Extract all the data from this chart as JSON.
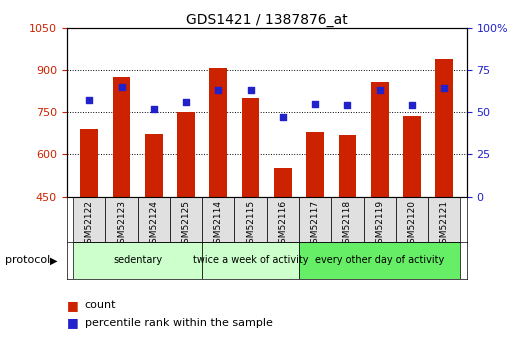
{
  "title": "GDS1421 / 1387876_at",
  "samples": [
    "GSM52122",
    "GSM52123",
    "GSM52124",
    "GSM52125",
    "GSM52114",
    "GSM52115",
    "GSM52116",
    "GSM52117",
    "GSM52118",
    "GSM52119",
    "GSM52120",
    "GSM52121"
  ],
  "counts": [
    690,
    875,
    672,
    752,
    905,
    800,
    553,
    678,
    668,
    857,
    735,
    940
  ],
  "percentiles": [
    57,
    65,
    52,
    56,
    63,
    63,
    47,
    55,
    54,
    63,
    54,
    64
  ],
  "group_defs": [
    {
      "start": 0,
      "end": 4,
      "color": "#ccffcc",
      "label": "sedentary"
    },
    {
      "start": 4,
      "end": 7,
      "color": "#ccffcc",
      "label": "twice a week of activity"
    },
    {
      "start": 7,
      "end": 12,
      "color": "#66ee66",
      "label": "every other day of activity"
    }
  ],
  "ylim_left": [
    450,
    1050
  ],
  "ylim_right": [
    0,
    100
  ],
  "yticks_left": [
    450,
    600,
    750,
    900,
    1050
  ],
  "yticks_right": [
    0,
    25,
    50,
    75,
    100
  ],
  "bar_color": "#cc2200",
  "dot_color": "#2222cc",
  "bar_width": 0.55,
  "tick_color_left": "#cc2200",
  "tick_color_right": "#2222cc",
  "legend_count_label": "count",
  "legend_pct_label": "percentile rank within the sample",
  "protocol_label": "protocol",
  "cell_color": "#e0e0e0"
}
